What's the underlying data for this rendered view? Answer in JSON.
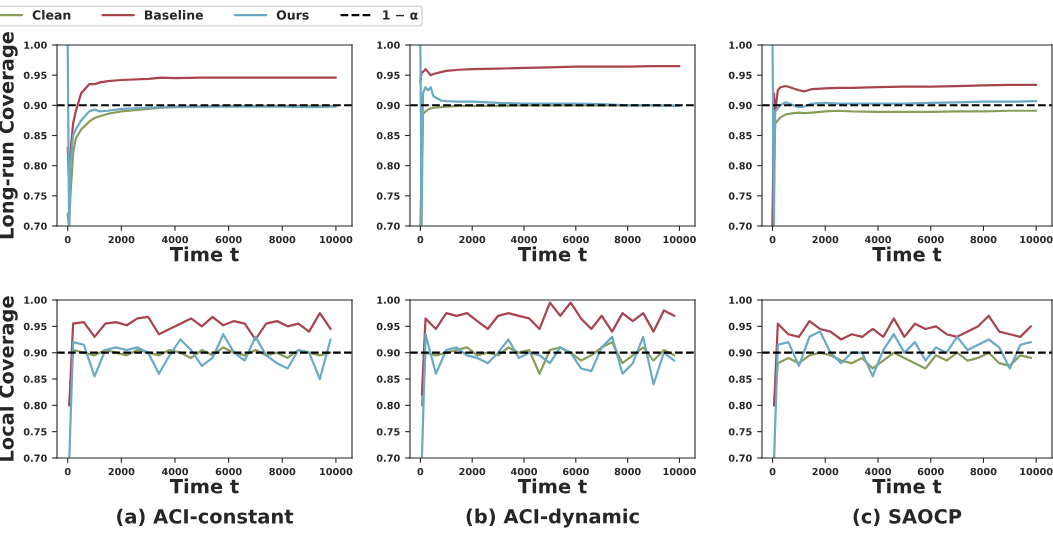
{
  "chart_data": [
    {
      "type": "line",
      "ylabel": "Long-run Coverage",
      "xlabel": "Time t",
      "xlim": [
        -400,
        10600
      ],
      "xticks": [
        0,
        2000,
        4000,
        6000,
        8000,
        10000
      ],
      "ylim": [
        0.7,
        1.0
      ],
      "yticks": [
        {
          "value": 0.7,
          "label": "0.70"
        },
        {
          "value": 0.75,
          "label": "0.75"
        },
        {
          "value": 0.8,
          "label": "0.80"
        },
        {
          "value": 0.85,
          "label": "0.85"
        },
        {
          "value": 0.9,
          "label": "0.90"
        },
        {
          "value": 0.95,
          "label": "0.95"
        },
        {
          "value": 1.0,
          "label": "1.00"
        }
      ],
      "legend": "top",
      "ref_lines": [
        {
          "axis": "y",
          "value": 0.9,
          "label": "1 − α",
          "color": "#000000",
          "line_style": "dashed"
        }
      ],
      "x": [
        0,
        50,
        100,
        200,
        300,
        500,
        800,
        1000,
        1200,
        1500,
        2000,
        3000,
        3500,
        4000,
        5000,
        6000,
        7000,
        8000,
        9000,
        10000
      ],
      "series": [
        {
          "name": "Clean",
          "color": "#8a9e5b",
          "values": [
            0.72,
            0.7,
            0.75,
            0.82,
            0.845,
            0.86,
            0.873,
            0.879,
            0.882,
            0.886,
            0.89,
            0.894,
            0.896,
            0.897,
            0.898,
            0.899,
            0.899,
            0.899,
            0.899,
            0.899
          ]
        },
        {
          "name": "Baseline",
          "color": "#a8434f",
          "values": [
            0.83,
            0.78,
            0.82,
            0.87,
            0.89,
            0.92,
            0.935,
            0.935,
            0.938,
            0.94,
            0.942,
            0.944,
            0.946,
            0.945,
            0.946,
            0.946,
            0.946,
            0.946,
            0.946,
            0.946
          ]
        },
        {
          "name": "Ours",
          "color": "#6aaac4",
          "values": [
            1.0,
            0.7,
            0.8,
            0.85,
            0.86,
            0.875,
            0.89,
            0.893,
            0.89,
            0.891,
            0.894,
            0.896,
            0.897,
            0.898,
            0.898,
            0.898,
            0.898,
            0.898,
            0.897,
            0.898
          ]
        }
      ]
    },
    {
      "type": "line",
      "xlabel": "Time t",
      "xlim": [
        -400,
        10600
      ],
      "xticks": [
        0,
        2000,
        4000,
        6000,
        8000,
        10000
      ],
      "ylim": [
        0.7,
        1.0
      ],
      "yticks": [
        {
          "value": 0.7,
          "label": "0.70"
        },
        {
          "value": 0.75,
          "label": "0.75"
        },
        {
          "value": 0.8,
          "label": "0.80"
        },
        {
          "value": 0.85,
          "label": "0.85"
        },
        {
          "value": 0.9,
          "label": "0.90"
        },
        {
          "value": 0.95,
          "label": "0.95"
        },
        {
          "value": 1.0,
          "label": "1.00"
        }
      ],
      "ref_lines": [
        {
          "axis": "y",
          "value": 0.9,
          "color": "#000000",
          "line_style": "dashed"
        }
      ],
      "x": [
        0,
        50,
        100,
        200,
        300,
        400,
        500,
        800,
        1000,
        1500,
        2000,
        3000,
        4000,
        5000,
        6000,
        7000,
        8000,
        9000,
        10000
      ],
      "series": [
        {
          "color": "#8a9e5b",
          "values": [
            0.7,
            null,
            0.885,
            0.89,
            0.893,
            0.895,
            0.896,
            0.897,
            0.898,
            0.899,
            0.899,
            0.899,
            0.9,
            0.9,
            0.9,
            0.9,
            0.9,
            0.9,
            0.899
          ]
        },
        {
          "color": "#a8434f",
          "values": [
            0.94,
            0.955,
            0.955,
            0.96,
            0.955,
            0.95,
            0.952,
            0.955,
            0.957,
            0.959,
            0.96,
            0.961,
            0.962,
            0.963,
            0.964,
            0.964,
            0.964,
            0.965,
            0.965
          ]
        },
        {
          "color": "#6aaac4",
          "values": [
            1.0,
            0.7,
            0.92,
            0.93,
            0.925,
            0.93,
            0.915,
            0.908,
            0.907,
            0.906,
            0.906,
            0.904,
            0.903,
            0.903,
            0.903,
            0.902,
            0.9,
            0.9,
            0.899
          ]
        }
      ]
    },
    {
      "type": "line",
      "xlabel": "Time t",
      "xlim": [
        -400,
        10600
      ],
      "xticks": [
        0,
        2000,
        4000,
        6000,
        8000,
        10000
      ],
      "ylim": [
        0.7,
        1.0
      ],
      "yticks": [
        {
          "value": 0.7,
          "label": "0.70"
        },
        {
          "value": 0.75,
          "label": "0.75"
        },
        {
          "value": 0.8,
          "label": "0.80"
        },
        {
          "value": 0.85,
          "label": "0.85"
        },
        {
          "value": 0.9,
          "label": "0.90"
        },
        {
          "value": 0.95,
          "label": "0.95"
        },
        {
          "value": 1.0,
          "label": "1.00"
        }
      ],
      "ref_lines": [
        {
          "axis": "y",
          "value": 0.9,
          "color": "#000000",
          "line_style": "dashed"
        }
      ],
      "x": [
        0,
        50,
        100,
        200,
        300,
        500,
        800,
        1000,
        1200,
        1500,
        2000,
        2500,
        3000,
        4000,
        5000,
        6000,
        7000,
        8000,
        9000,
        10000
      ],
      "series": [
        {
          "color": "#8a9e5b",
          "values": [
            0.7,
            0.8,
            0.87,
            0.875,
            0.88,
            0.885,
            0.887,
            0.888,
            0.887,
            0.888,
            0.89,
            0.891,
            0.89,
            0.889,
            0.889,
            0.889,
            0.89,
            0.89,
            0.891,
            0.891
          ]
        },
        {
          "color": "#a8434f",
          "values": [
            0.7,
            0.92,
            0.89,
            0.925,
            0.93,
            0.932,
            0.928,
            0.925,
            0.923,
            0.927,
            0.928,
            0.929,
            0.929,
            0.93,
            0.931,
            0.931,
            0.932,
            0.933,
            0.934,
            0.934
          ]
        },
        {
          "color": "#6aaac4",
          "values": [
            1.0,
            0.7,
            0.89,
            0.895,
            0.9,
            0.905,
            0.9,
            0.897,
            0.898,
            0.903,
            0.904,
            0.903,
            0.903,
            0.903,
            0.903,
            0.904,
            0.905,
            0.906,
            0.906,
            0.907
          ]
        }
      ]
    },
    {
      "type": "line",
      "ylabel": "Local Coverage",
      "xlabel": "Time t",
      "annotations": [
        "(a) ACI-constant"
      ],
      "xlim": [
        -400,
        10600
      ],
      "xticks": [
        0,
        2000,
        4000,
        6000,
        8000,
        10000
      ],
      "ylim": [
        0.7,
        1.0
      ],
      "yticks": [
        {
          "value": 0.7,
          "label": "0.70"
        },
        {
          "value": 0.75,
          "label": "0.75"
        },
        {
          "value": 0.8,
          "label": "0.80"
        },
        {
          "value": 0.85,
          "label": "0.85"
        },
        {
          "value": 0.9,
          "label": "0.90"
        },
        {
          "value": 0.95,
          "label": "0.95"
        },
        {
          "value": 1.0,
          "label": "1.00"
        }
      ],
      "ref_lines": [
        {
          "axis": "y",
          "value": 0.9,
          "color": "#000000",
          "line_style": "dashed"
        }
      ],
      "x": [
        60,
        200,
        600,
        1000,
        1400,
        1800,
        2200,
        2600,
        3000,
        3400,
        3800,
        4200,
        4600,
        5000,
        5400,
        5800,
        6200,
        6600,
        7000,
        7400,
        7800,
        8200,
        8600,
        9000,
        9400,
        9800
      ],
      "series": [
        {
          "color": "#8a9e5b",
          "values": [
            0.8,
            0.905,
            0.9,
            0.895,
            0.905,
            0.9,
            0.895,
            0.905,
            0.9,
            0.895,
            0.905,
            0.9,
            0.89,
            0.905,
            0.895,
            0.91,
            0.9,
            0.895,
            0.905,
            0.895,
            0.9,
            0.89,
            0.905,
            0.9,
            0.895,
            0.9
          ]
        },
        {
          "color": "#a8434f",
          "values": [
            0.8,
            0.955,
            0.958,
            0.93,
            0.955,
            0.958,
            0.952,
            0.965,
            0.968,
            0.935,
            0.945,
            0.955,
            0.965,
            0.95,
            0.968,
            0.952,
            0.96,
            0.955,
            0.925,
            0.955,
            0.96,
            0.95,
            0.955,
            0.94,
            0.975,
            0.945
          ]
        },
        {
          "color": "#6aaac4",
          "values": [
            0.7,
            0.92,
            0.915,
            0.855,
            0.905,
            0.91,
            0.905,
            0.91,
            0.9,
            0.86,
            0.895,
            0.925,
            0.905,
            0.875,
            0.89,
            0.935,
            0.9,
            0.885,
            0.93,
            0.895,
            0.88,
            0.87,
            0.905,
            0.9,
            0.85,
            0.925
          ]
        }
      ]
    },
    {
      "type": "line",
      "xlabel": "Time t",
      "annotations": [
        "(b) ACI-dynamic"
      ],
      "xlim": [
        -400,
        10600
      ],
      "xticks": [
        0,
        2000,
        4000,
        6000,
        8000,
        10000
      ],
      "ylim": [
        0.7,
        1.0
      ],
      "yticks": [
        {
          "value": 0.7,
          "label": "0.70"
        },
        {
          "value": 0.75,
          "label": "0.75"
        },
        {
          "value": 0.8,
          "label": "0.80"
        },
        {
          "value": 0.85,
          "label": "0.85"
        },
        {
          "value": 0.9,
          "label": "0.90"
        },
        {
          "value": 0.95,
          "label": "0.95"
        },
        {
          "value": 1.0,
          "label": "1.00"
        }
      ],
      "ref_lines": [
        {
          "axis": "y",
          "value": 0.9,
          "color": "#000000",
          "line_style": "dashed"
        }
      ],
      "x": [
        60,
        200,
        600,
        1000,
        1400,
        1800,
        2200,
        2600,
        3000,
        3400,
        3800,
        4200,
        4600,
        5000,
        5400,
        5800,
        6200,
        6600,
        7000,
        7400,
        7800,
        8200,
        8600,
        9000,
        9400,
        9800
      ],
      "series": [
        {
          "color": "#8a9e5b",
          "values": [
            0.8,
            0.9,
            0.895,
            0.9,
            0.905,
            0.91,
            0.895,
            0.9,
            0.895,
            0.91,
            0.9,
            0.905,
            0.86,
            0.905,
            0.91,
            0.9,
            0.885,
            0.895,
            0.91,
            0.92,
            0.88,
            0.895,
            0.91,
            0.885,
            0.905,
            0.895
          ]
        },
        {
          "color": "#a8434f",
          "values": [
            0.82,
            0.965,
            0.945,
            0.975,
            0.97,
            0.975,
            0.96,
            0.945,
            0.97,
            0.975,
            0.97,
            0.965,
            0.945,
            0.995,
            0.97,
            0.995,
            0.965,
            0.945,
            0.97,
            0.94,
            0.975,
            0.96,
            0.975,
            0.94,
            0.98,
            0.97
          ]
        },
        {
          "color": "#6aaac4",
          "values": [
            0.7,
            0.935,
            0.86,
            0.905,
            0.91,
            0.895,
            0.89,
            0.88,
            0.9,
            0.925,
            0.89,
            0.9,
            0.895,
            0.88,
            0.91,
            0.9,
            0.87,
            0.865,
            0.91,
            0.93,
            0.86,
            0.88,
            0.93,
            0.84,
            0.9,
            0.885
          ]
        }
      ]
    },
    {
      "type": "line",
      "xlabel": "Time t",
      "annotations": [
        "(c) SAOCP"
      ],
      "xlim": [
        -400,
        10600
      ],
      "xticks": [
        0,
        2000,
        4000,
        6000,
        8000,
        10000
      ],
      "ylim": [
        0.7,
        1.0
      ],
      "yticks": [
        {
          "value": 0.7,
          "label": "0.70"
        },
        {
          "value": 0.75,
          "label": "0.75"
        },
        {
          "value": 0.8,
          "label": "0.80"
        },
        {
          "value": 0.85,
          "label": "0.85"
        },
        {
          "value": 0.9,
          "label": "0.90"
        },
        {
          "value": 0.95,
          "label": "0.95"
        },
        {
          "value": 1.0,
          "label": "1.00"
        }
      ],
      "ref_lines": [
        {
          "axis": "y",
          "value": 0.9,
          "color": "#000000",
          "line_style": "dashed"
        }
      ],
      "x": [
        60,
        200,
        600,
        1000,
        1400,
        1800,
        2200,
        2600,
        3000,
        3400,
        3800,
        4200,
        4600,
        5000,
        5400,
        5800,
        6200,
        6600,
        7000,
        7400,
        7800,
        8200,
        8600,
        9000,
        9400,
        9800
      ],
      "series": [
        {
          "color": "#8a9e5b",
          "values": [
            0.8,
            0.88,
            0.89,
            0.88,
            0.895,
            0.9,
            0.895,
            0.885,
            0.88,
            0.89,
            0.87,
            0.885,
            0.9,
            0.89,
            0.88,
            0.87,
            0.895,
            0.885,
            0.9,
            0.885,
            0.89,
            0.9,
            0.88,
            0.875,
            0.895,
            0.89
          ]
        },
        {
          "color": "#a8434f",
          "values": [
            0.8,
            0.955,
            0.935,
            0.93,
            0.96,
            0.945,
            0.94,
            0.925,
            0.935,
            0.93,
            0.945,
            0.93,
            0.965,
            0.93,
            0.955,
            0.945,
            0.95,
            0.935,
            0.93,
            0.94,
            0.95,
            0.97,
            0.94,
            0.935,
            0.93,
            0.95
          ]
        },
        {
          "color": "#6aaac4",
          "values": [
            0.7,
            0.915,
            0.92,
            0.875,
            0.93,
            0.94,
            0.9,
            0.88,
            0.9,
            0.9,
            0.855,
            0.905,
            0.935,
            0.9,
            0.92,
            0.885,
            0.91,
            0.9,
            0.93,
            0.905,
            0.915,
            0.925,
            0.91,
            0.87,
            0.915,
            0.92
          ]
        }
      ]
    }
  ]
}
